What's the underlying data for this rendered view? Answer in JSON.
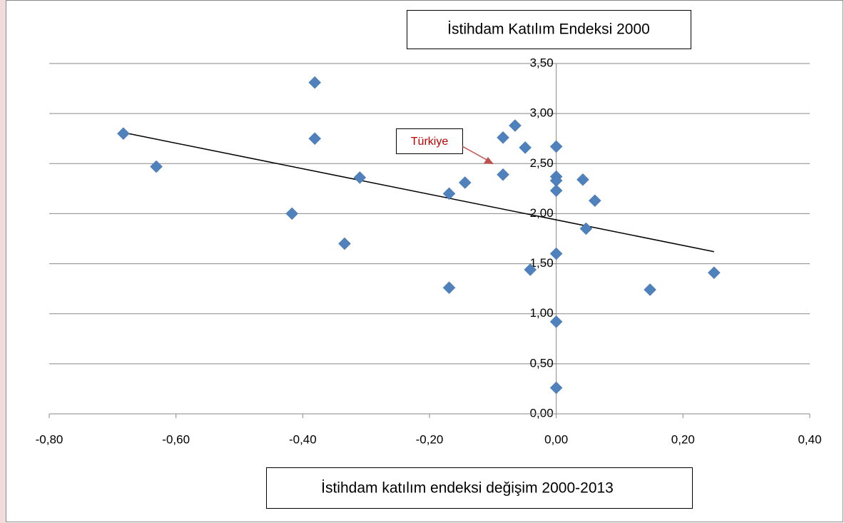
{
  "chart_data": {
    "type": "scatter",
    "title": "İstihdam Katılım Endeksi 2000",
    "x_label": "İstihdam katılım endeksi değişim 2000-2013",
    "annotation": "Türkiye",
    "color": "#4f81bd",
    "x": [
      -0.683,
      -0.631,
      -0.381,
      -0.381,
      -0.417,
      -0.31,
      -0.334,
      -0.169,
      -0.144,
      -0.169,
      -0.084,
      -0.065,
      -0.084,
      -0.049,
      -0.041,
      0,
      0,
      0,
      0,
      0,
      0,
      0,
      0.042,
      0.061,
      0.047,
      0.148,
      0.249
    ],
    "values": [
      2.8,
      2.47,
      3.31,
      2.75,
      2.0,
      2.36,
      1.7,
      2.2,
      2.31,
      1.26,
      2.76,
      2.88,
      2.39,
      2.66,
      1.44,
      2.67,
      2.37,
      2.33,
      2.23,
      1.6,
      0.92,
      0.26,
      2.34,
      2.13,
      1.85,
      1.24,
      1.41
    ],
    "trendline": {
      "x": [
        -0.683,
        0.249
      ],
      "values": [
        2.81,
        1.62
      ],
      "color": "#000000"
    },
    "xlim": [
      -0.8,
      0.4
    ],
    "ylim": [
      0,
      3.5
    ],
    "xticks": [
      {
        "value": -0.8,
        "label": "-0,80"
      },
      {
        "value": -0.6,
        "label": "-0,60"
      },
      {
        "value": -0.4,
        "label": "-0,40"
      },
      {
        "value": -0.2,
        "label": "-0,20"
      },
      {
        "value": 0,
        "label": "0,00"
      },
      {
        "value": 0.2,
        "label": "0,20"
      },
      {
        "value": 0.4,
        "label": "0,40"
      }
    ],
    "yticks": [
      {
        "value": 0,
        "label": "0,00"
      },
      {
        "value": 0.5,
        "label": "0,50"
      },
      {
        "value": 1,
        "label": "1,00"
      },
      {
        "value": 1.5,
        "label": "1,50"
      },
      {
        "value": 2,
        "label": "2,00"
      },
      {
        "value": 2.5,
        "label": "2,50"
      },
      {
        "value": 3,
        "label": "3,00"
      },
      {
        "value": 3.5,
        "label": "3,50"
      }
    ],
    "grid": true
  }
}
